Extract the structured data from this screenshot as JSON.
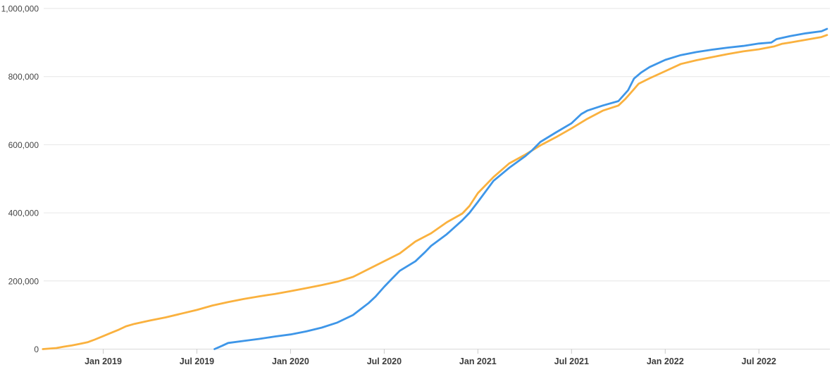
{
  "chart_data": {
    "type": "line",
    "legend": "none",
    "grid": "horizontal-only",
    "x_axis": {
      "tick_dates": [
        "2019-01-01",
        "2019-07-01",
        "2020-01-01",
        "2020-07-01",
        "2021-01-01",
        "2021-07-01",
        "2022-01-01",
        "2022-07-01"
      ],
      "tick_labels": [
        "Jan 2019",
        "Jul 2019",
        "Jan 2020",
        "Jul 2020",
        "Jan 2021",
        "Jul 2021",
        "Jan 2022",
        "Jul 2022"
      ]
    },
    "y_axis": {
      "range": [
        0,
        1000000
      ],
      "tick_values": [
        0,
        200000,
        400000,
        600000,
        800000,
        1000000
      ],
      "tick_labels": [
        "0",
        "200,000",
        "400,000",
        "600,000",
        "800,000",
        "1,000,000"
      ]
    },
    "series": [
      {
        "name": "orange-series",
        "color": "#FAB13E",
        "points": [
          [
            "2018-09-05",
            0
          ],
          [
            "2018-10-01",
            3000
          ],
          [
            "2018-10-15",
            7000
          ],
          [
            "2018-11-01",
            11000
          ],
          [
            "2018-11-15",
            15000
          ],
          [
            "2018-12-01",
            20000
          ],
          [
            "2018-12-15",
            28000
          ],
          [
            "2019-01-01",
            38000
          ],
          [
            "2019-01-15",
            47000
          ],
          [
            "2019-02-01",
            57000
          ],
          [
            "2019-02-15",
            67000
          ],
          [
            "2019-03-01",
            74000
          ],
          [
            "2019-04-01",
            84000
          ],
          [
            "2019-05-01",
            93000
          ],
          [
            "2019-06-01",
            104000
          ],
          [
            "2019-07-01",
            115000
          ],
          [
            "2019-08-01",
            128000
          ],
          [
            "2019-09-01",
            138000
          ],
          [
            "2019-10-01",
            147000
          ],
          [
            "2019-11-01",
            155000
          ],
          [
            "2019-12-01",
            162000
          ],
          [
            "2020-01-01",
            170000
          ],
          [
            "2020-02-01",
            179000
          ],
          [
            "2020-03-01",
            188000
          ],
          [
            "2020-04-01",
            198000
          ],
          [
            "2020-05-01",
            212000
          ],
          [
            "2020-06-01",
            235000
          ],
          [
            "2020-07-01",
            258000
          ],
          [
            "2020-08-01",
            281000
          ],
          [
            "2020-09-01",
            316000
          ],
          [
            "2020-10-01",
            340000
          ],
          [
            "2020-11-01",
            372000
          ],
          [
            "2020-12-01",
            398000
          ],
          [
            "2020-12-15",
            420000
          ],
          [
            "2021-01-01",
            458000
          ],
          [
            "2021-02-01",
            505000
          ],
          [
            "2021-03-01",
            545000
          ],
          [
            "2021-04-01",
            570000
          ],
          [
            "2021-05-01",
            598000
          ],
          [
            "2021-06-01",
            622000
          ],
          [
            "2021-07-01",
            648000
          ],
          [
            "2021-08-01",
            676000
          ],
          [
            "2021-09-01",
            700000
          ],
          [
            "2021-10-01",
            715000
          ],
          [
            "2021-10-15",
            735000
          ],
          [
            "2021-11-01",
            763000
          ],
          [
            "2021-11-10",
            779000
          ],
          [
            "2021-12-01",
            795000
          ],
          [
            "2022-01-01",
            816000
          ],
          [
            "2022-02-01",
            837000
          ],
          [
            "2022-03-01",
            848000
          ],
          [
            "2022-04-01",
            857000
          ],
          [
            "2022-05-01",
            866000
          ],
          [
            "2022-06-01",
            874000
          ],
          [
            "2022-07-01",
            880000
          ],
          [
            "2022-08-01",
            889000
          ],
          [
            "2022-08-15",
            896000
          ],
          [
            "2022-09-01",
            900000
          ],
          [
            "2022-10-01",
            908000
          ],
          [
            "2022-11-01",
            916000
          ],
          [
            "2022-11-12",
            922000
          ]
        ]
      },
      {
        "name": "blue-series",
        "color": "#3E96E8",
        "points": [
          [
            "2019-08-05",
            0
          ],
          [
            "2019-08-20",
            10000
          ],
          [
            "2019-09-01",
            18000
          ],
          [
            "2019-10-01",
            24000
          ],
          [
            "2019-11-01",
            30000
          ],
          [
            "2019-12-01",
            37000
          ],
          [
            "2020-01-01",
            43000
          ],
          [
            "2020-02-01",
            52000
          ],
          [
            "2020-03-01",
            63000
          ],
          [
            "2020-04-01",
            78000
          ],
          [
            "2020-05-01",
            100000
          ],
          [
            "2020-06-01",
            135000
          ],
          [
            "2020-06-15",
            155000
          ],
          [
            "2020-07-01",
            183000
          ],
          [
            "2020-07-15",
            205000
          ],
          [
            "2020-08-01",
            230000
          ],
          [
            "2020-09-01",
            258000
          ],
          [
            "2020-09-20",
            285000
          ],
          [
            "2020-10-01",
            303000
          ],
          [
            "2020-11-01",
            337000
          ],
          [
            "2020-12-01",
            378000
          ],
          [
            "2020-12-15",
            400000
          ],
          [
            "2021-01-01",
            432000
          ],
          [
            "2021-02-01",
            494000
          ],
          [
            "2021-03-01",
            532000
          ],
          [
            "2021-04-01",
            565000
          ],
          [
            "2021-04-15",
            583000
          ],
          [
            "2021-05-01",
            608000
          ],
          [
            "2021-06-01",
            636000
          ],
          [
            "2021-07-01",
            663000
          ],
          [
            "2021-07-20",
            690000
          ],
          [
            "2021-08-01",
            700000
          ],
          [
            "2021-09-01",
            715000
          ],
          [
            "2021-10-01",
            728000
          ],
          [
            "2021-10-20",
            760000
          ],
          [
            "2021-11-01",
            794000
          ],
          [
            "2021-11-15",
            812000
          ],
          [
            "2021-12-01",
            828000
          ],
          [
            "2022-01-01",
            849000
          ],
          [
            "2022-02-01",
            863000
          ],
          [
            "2022-03-01",
            872000
          ],
          [
            "2022-04-01",
            879000
          ],
          [
            "2022-05-01",
            885000
          ],
          [
            "2022-06-01",
            890000
          ],
          [
            "2022-07-01",
            897000
          ],
          [
            "2022-07-25",
            900000
          ],
          [
            "2022-08-05",
            910000
          ],
          [
            "2022-09-01",
            919000
          ],
          [
            "2022-10-01",
            927000
          ],
          [
            "2022-11-01",
            933000
          ],
          [
            "2022-11-12",
            940000
          ]
        ]
      }
    ]
  },
  "theme": {
    "background": "#ffffff",
    "gridline_color": "#e6e6e6",
    "axis_line_color": "#d9d9d9",
    "tick_color": "#c9c9c9",
    "y_label_color": "#454545",
    "x_label_color": "#3c3c3c",
    "line_width": 2.8
  }
}
